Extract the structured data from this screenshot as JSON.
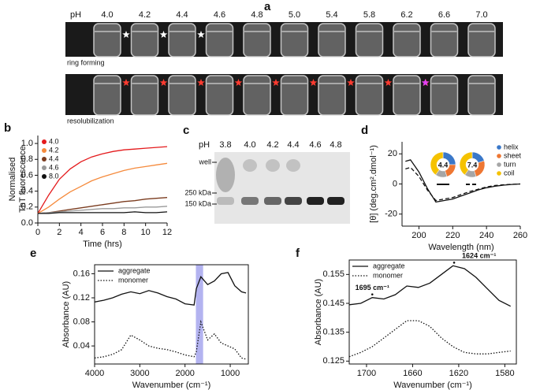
{
  "figure_a": {
    "label": "a",
    "ph_label": "pH",
    "ph": [
      "4.0",
      "4.2",
      "4.4",
      "4.6",
      "4.8",
      "5.0",
      "5.4",
      "5.8",
      "6.2",
      "6.6",
      "7.0"
    ],
    "row1_caption": "ring forming",
    "row2_caption": "resolubilization"
  },
  "figure_c": {
    "label": "c",
    "ph_label": "pH",
    "ph": [
      "3.8",
      "4.0",
      "4.2",
      "4.4",
      "4.6",
      "4.8"
    ],
    "markers": [
      "well",
      "250 kDa",
      "150 kDa"
    ]
  },
  "chart_data": [
    {
      "type": "line",
      "label": "b",
      "ylabel": [
        "Normalised",
        "ThT fluorescence"
      ],
      "xlabel": "Time (hrs)",
      "x": [
        0,
        1,
        2,
        3,
        4,
        5,
        6,
        7,
        8,
        9,
        10,
        11,
        12
      ],
      "xlim": [
        0,
        12
      ],
      "xticks": [
        0,
        2,
        4,
        6,
        8,
        10,
        12
      ],
      "ylim": [
        0,
        1.1
      ],
      "yticks": [
        {
          "value": 0,
          "label": "0.0"
        },
        0.2,
        0.4,
        0.6,
        0.8,
        {
          "value": 1,
          "label": "1.0"
        }
      ],
      "legend": "upper left",
      "series": [
        {
          "name": "4.0",
          "color": "#e41a1c",
          "dash": "solid",
          "values": [
            0.12,
            0.35,
            0.55,
            0.68,
            0.77,
            0.83,
            0.87,
            0.9,
            0.92,
            0.93,
            0.94,
            0.95,
            0.96
          ]
        },
        {
          "name": "4.2",
          "color": "#f58a3c",
          "dash": "solid",
          "values": [
            0.12,
            0.2,
            0.3,
            0.39,
            0.46,
            0.53,
            0.58,
            0.62,
            0.66,
            0.69,
            0.71,
            0.73,
            0.75
          ]
        },
        {
          "name": "4.4",
          "color": "#7a3b1e",
          "dash": "solid",
          "values": [
            0.12,
            0.13,
            0.15,
            0.17,
            0.19,
            0.21,
            0.23,
            0.25,
            0.27,
            0.28,
            0.3,
            0.31,
            0.32
          ]
        },
        {
          "name": "4.6",
          "color": "#999999",
          "dash": "solid",
          "values": [
            0.12,
            0.13,
            0.14,
            0.15,
            0.16,
            0.17,
            0.18,
            0.18,
            0.19,
            0.19,
            0.2,
            0.2,
            0.21
          ]
        },
        {
          "name": "8.0",
          "color": "#111111",
          "dash": "solid",
          "values": [
            0.12,
            0.12,
            0.13,
            0.13,
            0.13,
            0.13,
            0.13,
            0.13,
            0.13,
            0.14,
            0.13,
            0.13,
            0.14
          ]
        }
      ]
    },
    {
      "type": "line",
      "label": "d",
      "ylabel": [
        "[θ] (deg.cm².dmol⁻¹)"
      ],
      "xlabel": "Wavelength (nm)",
      "x": [
        192,
        195,
        200,
        205,
        210,
        215,
        220,
        225,
        230,
        235,
        240,
        245,
        250,
        255,
        260
      ],
      "xlim": [
        190,
        260
      ],
      "xticks": [
        200,
        220,
        240,
        260
      ],
      "ylim": [
        -28,
        28
      ],
      "yticks": [
        -20,
        0,
        20
      ],
      "series": [
        {
          "color": "#111111",
          "dash": "solid",
          "values": [
            15,
            16,
            8,
            -3,
            -12,
            -11,
            -10,
            -8,
            -6,
            -4,
            -2.5,
            -1.5,
            -0.8,
            -0.3,
            0
          ]
        },
        {
          "color": "#111111",
          "dash": "dashed",
          "values": [
            10,
            11,
            5,
            -4,
            -11,
            -10,
            -9,
            -7,
            -5,
            -3.5,
            -2,
            -1,
            -0.5,
            -0.2,
            0
          ]
        }
      ],
      "insets": [
        {
          "label": "4.4",
          "line": "solid",
          "values": [
            25,
            20,
            15,
            40
          ]
        },
        {
          "label": "7.4",
          "line": "dashed",
          "values": [
            20,
            25,
            15,
            40
          ]
        }
      ],
      "inset_legend": {
        "categories": [
          "helix",
          "sheet",
          "turn",
          "coil"
        ],
        "colors": [
          "#3a78c9",
          "#ee7733",
          "#a6a6a6",
          "#f5c200"
        ]
      }
    },
    {
      "type": "line",
      "label": "e",
      "ylabel": [
        "Absorbance (AU)"
      ],
      "xlabel": "Wavenumber (cm⁻¹)",
      "x": [
        4000,
        3800,
        3600,
        3400,
        3200,
        3000,
        2800,
        2600,
        2400,
        2200,
        2000,
        1800,
        1750,
        1650,
        1500,
        1350,
        1200,
        1050,
        900,
        750,
        650
      ],
      "xlim": [
        4000,
        600
      ],
      "xticks": [
        4000,
        3000,
        2000,
        1000
      ],
      "ylim": [
        0.01,
        0.175
      ],
      "yticks": [
        0.04,
        0.08,
        0.12,
        0.16
      ],
      "band": [
        1760,
        1600
      ],
      "band_color": "#b3b3f0",
      "legend": "upper left",
      "series": [
        {
          "name": "aggregate",
          "color": "#111111",
          "dash": "solid",
          "values": [
            0.113,
            0.116,
            0.12,
            0.126,
            0.13,
            0.127,
            0.132,
            0.128,
            0.122,
            0.118,
            0.11,
            0.108,
            0.135,
            0.155,
            0.142,
            0.148,
            0.16,
            0.162,
            0.14,
            0.13,
            0.128
          ]
        },
        {
          "name": "monomer",
          "color": "#111111",
          "dash": "dotted",
          "values": [
            0.02,
            0.022,
            0.026,
            0.034,
            0.058,
            0.05,
            0.04,
            0.036,
            0.034,
            0.03,
            0.025,
            0.022,
            0.03,
            0.08,
            0.05,
            0.06,
            0.045,
            0.04,
            0.035,
            0.02,
            0.018
          ]
        }
      ]
    },
    {
      "type": "line",
      "label": "f",
      "ylabel": [
        "Absorbance (AU)"
      ],
      "xlabel": "Wavenumber (cm⁻¹)",
      "x": [
        1715,
        1705,
        1695,
        1685,
        1675,
        1665,
        1655,
        1645,
        1635,
        1625,
        1615,
        1605,
        1595,
        1585,
        1575
      ],
      "xlim": [
        1715,
        1570
      ],
      "xticks": [
        1700,
        1660,
        1620,
        1580
      ],
      "ylim": [
        0.124,
        0.16
      ],
      "yticks": [
        0.125,
        0.135,
        0.145,
        0.155
      ],
      "legend": "upper left",
      "annotations": [
        {
          "text": "1695 cm⁻¹",
          "x": 1695,
          "y": 0.147
        },
        {
          "text": "1624 cm⁻¹",
          "x": 1624,
          "y": 0.158
        }
      ],
      "series": [
        {
          "name": "aggregate",
          "color": "#111111",
          "dash": "solid",
          "values": [
            0.1445,
            0.145,
            0.147,
            0.1465,
            0.148,
            0.151,
            0.1505,
            0.152,
            0.155,
            0.158,
            0.157,
            0.154,
            0.15,
            0.146,
            0.144
          ]
        },
        {
          "name": "monomer",
          "color": "#111111",
          "dash": "dotted",
          "values": [
            0.1265,
            0.128,
            0.13,
            0.133,
            0.136,
            0.139,
            0.139,
            0.137,
            0.133,
            0.13,
            0.128,
            0.1275,
            0.1275,
            0.128,
            0.1285
          ]
        }
      ]
    }
  ]
}
